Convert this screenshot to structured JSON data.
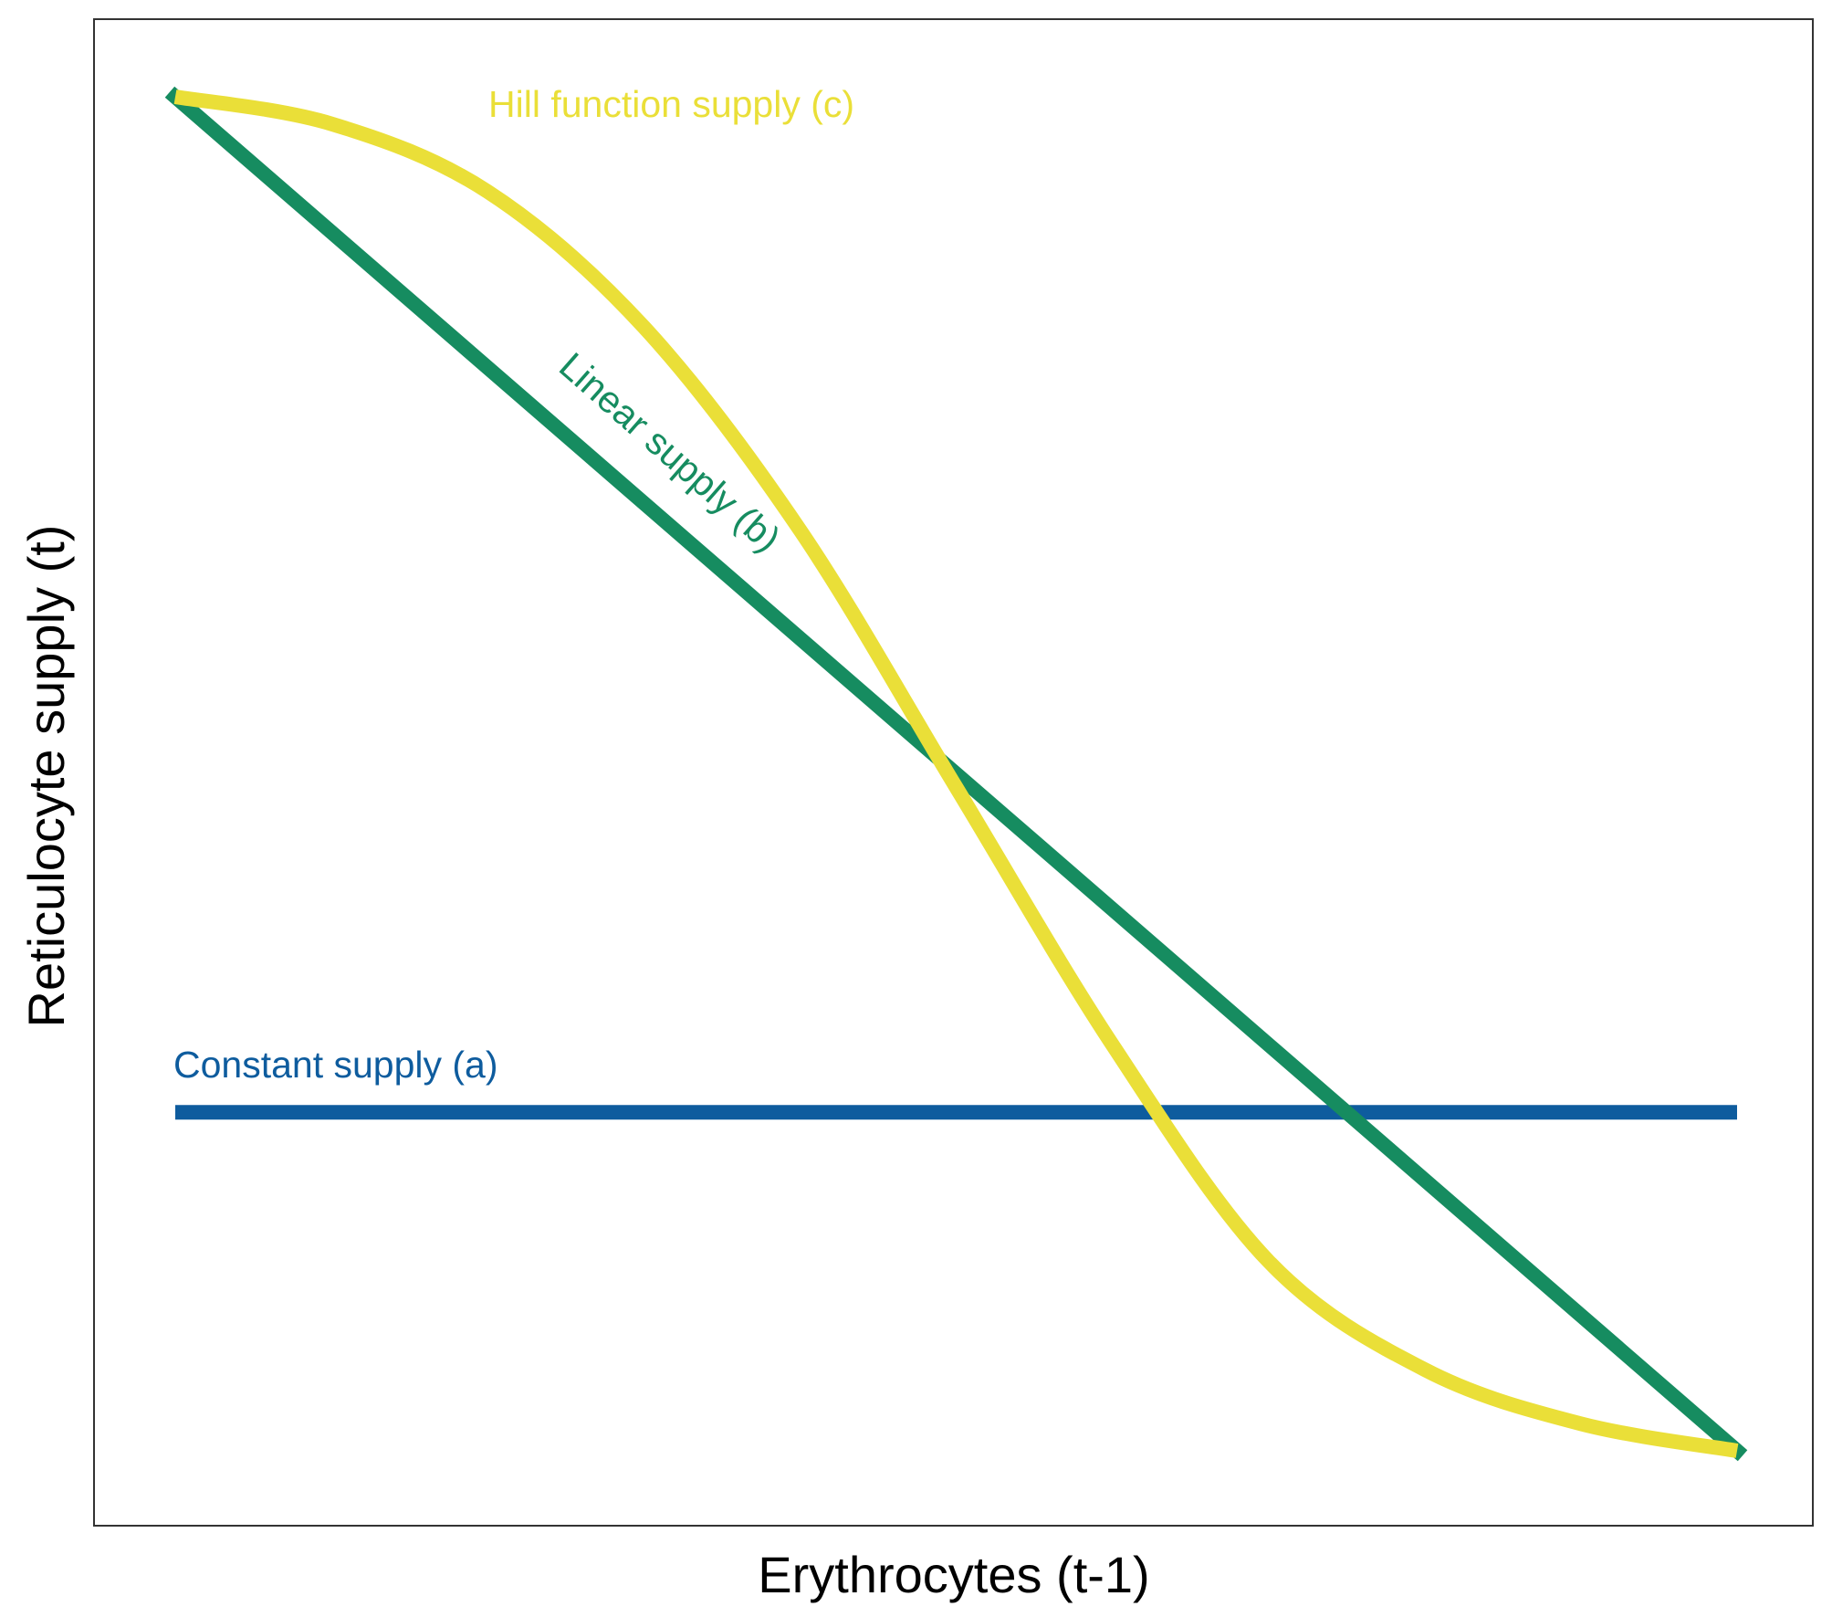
{
  "chart_data": {
    "type": "line",
    "xlabel": "Erythrocytes (t-1)",
    "ylabel": "Reticulocyte supply (t)",
    "xlim": [
      0,
      1
    ],
    "ylim": [
      0,
      1
    ],
    "grid": false,
    "legend": "inline labels",
    "series": [
      {
        "name": "Constant supply (a)",
        "color": "#0E5C9E",
        "x": [
          0,
          1
        ],
        "y": [
          0.25,
          0.25
        ]
      },
      {
        "name": "Linear supply (b)",
        "color": "#168C60",
        "x": [
          0,
          1
        ],
        "y": [
          1.0,
          0.0
        ]
      },
      {
        "name": "Hill function supply (c)",
        "color": "#EADF38",
        "x": [
          0.0,
          0.1,
          0.2,
          0.3,
          0.4,
          0.5,
          0.6,
          0.7,
          0.8,
          0.9,
          1.0
        ],
        "y": [
          1.0,
          0.98,
          0.93,
          0.83,
          0.68,
          0.49,
          0.3,
          0.14,
          0.06,
          0.02,
          0.0
        ]
      }
    ]
  }
}
